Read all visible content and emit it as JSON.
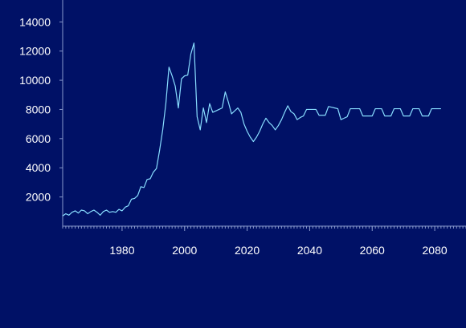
{
  "colors": {
    "background": "#001166",
    "axis": "#8899cc",
    "line": "#88ddff",
    "text": "#ffffff"
  },
  "chart_data": {
    "type": "line",
    "title": "",
    "xlabel": "",
    "ylabel": "",
    "xlim": [
      1961,
      2090
    ],
    "ylim": [
      0,
      15500
    ],
    "grid": false,
    "legend": "none",
    "x_ticks": [
      {
        "value": 1980,
        "label": "1980"
      },
      {
        "value": 2000,
        "label": "2000"
      },
      {
        "value": 2020,
        "label": "2020"
      },
      {
        "value": 2040,
        "label": "2040"
      },
      {
        "value": 2060,
        "label": "2060"
      },
      {
        "value": 2080,
        "label": "2080"
      }
    ],
    "y_ticks": [
      {
        "value": 2000,
        "label": "2000"
      },
      {
        "value": 4000,
        "label": "4000"
      },
      {
        "value": 6000,
        "label": "6000"
      },
      {
        "value": 8000,
        "label": "8000"
      },
      {
        "value": 10000,
        "label": "10000"
      },
      {
        "value": 12000,
        "label": "12000"
      },
      {
        "value": 14000,
        "label": "14000"
      }
    ],
    "series": [
      {
        "values": [
          [
            1961,
            700
          ],
          [
            1962,
            850
          ],
          [
            1963,
            750
          ],
          [
            1964,
            950
          ],
          [
            1965,
            1050
          ],
          [
            1966,
            900
          ],
          [
            1967,
            1100
          ],
          [
            1968,
            1050
          ],
          [
            1969,
            850
          ],
          [
            1970,
            1000
          ],
          [
            1971,
            1100
          ],
          [
            1972,
            950
          ],
          [
            1973,
            750
          ],
          [
            1974,
            1000
          ],
          [
            1975,
            1100
          ],
          [
            1976,
            950
          ],
          [
            1977,
            1000
          ],
          [
            1978,
            950
          ],
          [
            1979,
            1150
          ],
          [
            1980,
            1050
          ],
          [
            1981,
            1300
          ],
          [
            1982,
            1400
          ],
          [
            1983,
            1850
          ],
          [
            1984,
            1900
          ],
          [
            1985,
            2100
          ],
          [
            1986,
            2700
          ],
          [
            1987,
            2650
          ],
          [
            1988,
            3200
          ],
          [
            1989,
            3250
          ],
          [
            1990,
            3700
          ],
          [
            1991,
            3950
          ],
          [
            1992,
            5200
          ],
          [
            1993,
            6600
          ],
          [
            1994,
            8400
          ],
          [
            1995,
            10900
          ],
          [
            1996,
            10300
          ],
          [
            1997,
            9600
          ],
          [
            1998,
            8100
          ],
          [
            1999,
            10100
          ],
          [
            2000,
            10300
          ],
          [
            2001,
            10350
          ],
          [
            2002,
            11800
          ],
          [
            2003,
            12550
          ],
          [
            2004,
            7500
          ],
          [
            2005,
            6600
          ],
          [
            2006,
            8100
          ],
          [
            2007,
            7100
          ],
          [
            2008,
            8400
          ],
          [
            2009,
            7800
          ],
          [
            2010,
            7900
          ],
          [
            2011,
            8000
          ],
          [
            2012,
            8100
          ],
          [
            2013,
            9200
          ],
          [
            2014,
            8500
          ],
          [
            2015,
            7700
          ],
          [
            2016,
            7900
          ],
          [
            2017,
            8100
          ],
          [
            2018,
            7800
          ],
          [
            2019,
            7000
          ],
          [
            2020,
            6500
          ],
          [
            2021,
            6100
          ],
          [
            2022,
            5800
          ],
          [
            2023,
            6100
          ],
          [
            2024,
            6500
          ],
          [
            2025,
            7000
          ],
          [
            2026,
            7400
          ],
          [
            2027,
            7100
          ],
          [
            2028,
            6900
          ],
          [
            2029,
            6600
          ],
          [
            2030,
            6900
          ],
          [
            2031,
            7300
          ],
          [
            2032,
            7800
          ],
          [
            2033,
            8250
          ],
          [
            2034,
            7850
          ],
          [
            2035,
            7700
          ],
          [
            2036,
            7300
          ],
          [
            2037,
            7450
          ],
          [
            2038,
            7550
          ],
          [
            2039,
            8000
          ],
          [
            2040,
            8000
          ],
          [
            2041,
            8000
          ],
          [
            2042,
            8000
          ],
          [
            2043,
            7600
          ],
          [
            2044,
            7600
          ],
          [
            2045,
            7600
          ],
          [
            2046,
            8200
          ],
          [
            2047,
            8150
          ],
          [
            2048,
            8100
          ],
          [
            2049,
            8050
          ],
          [
            2050,
            7300
          ],
          [
            2051,
            7400
          ],
          [
            2052,
            7500
          ],
          [
            2053,
            8050
          ],
          [
            2054,
            8050
          ],
          [
            2055,
            8050
          ],
          [
            2056,
            8050
          ],
          [
            2057,
            7550
          ],
          [
            2058,
            7550
          ],
          [
            2059,
            7550
          ],
          [
            2060,
            7550
          ],
          [
            2061,
            8050
          ],
          [
            2062,
            8050
          ],
          [
            2063,
            8050
          ],
          [
            2064,
            7550
          ],
          [
            2065,
            7550
          ],
          [
            2066,
            7550
          ],
          [
            2067,
            8050
          ],
          [
            2068,
            8050
          ],
          [
            2069,
            8050
          ],
          [
            2070,
            7550
          ],
          [
            2071,
            7550
          ],
          [
            2072,
            7550
          ],
          [
            2073,
            8050
          ],
          [
            2074,
            8050
          ],
          [
            2075,
            8050
          ],
          [
            2076,
            7550
          ],
          [
            2077,
            7550
          ],
          [
            2078,
            7550
          ],
          [
            2079,
            8050
          ],
          [
            2080,
            8050
          ],
          [
            2081,
            8050
          ],
          [
            2082,
            8050
          ]
        ]
      }
    ]
  }
}
